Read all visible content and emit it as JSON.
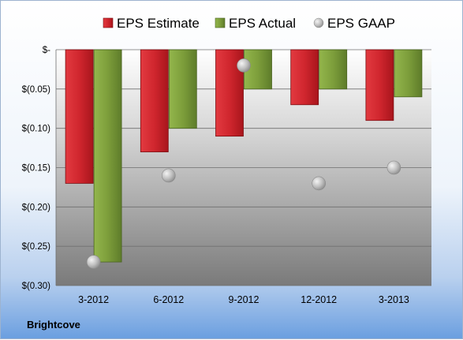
{
  "company": "Brightcove",
  "chart_data": {
    "type": "bar",
    "title": "",
    "xlabel": "",
    "ylabel": "",
    "categories": [
      "3-2012",
      "6-2012",
      "9-2012",
      "12-2012",
      "3-2013"
    ],
    "series": [
      {
        "name": "EPS Estimate",
        "type": "bar",
        "color": "#c0212b",
        "values": [
          -0.17,
          -0.13,
          -0.11,
          -0.07,
          -0.09
        ]
      },
      {
        "name": "EPS Actual",
        "type": "bar",
        "color": "#7a9a3a",
        "values": [
          -0.27,
          -0.1,
          -0.05,
          -0.05,
          -0.06
        ]
      },
      {
        "name": "EPS GAAP",
        "type": "marker",
        "color": "#b8b8b8",
        "values": [
          -0.27,
          -0.16,
          -0.02,
          -0.17,
          -0.15
        ]
      }
    ],
    "ylim": [
      -0.3,
      0
    ],
    "yticks": [
      0,
      -0.05,
      -0.1,
      -0.15,
      -0.2,
      -0.25,
      -0.3
    ],
    "ytick_labels": [
      "$-",
      "$(0.05)",
      "$(0.10)",
      "$(0.15)",
      "$(0.20)",
      "$(0.25)",
      "$(0.30)"
    ],
    "grid": true,
    "legend_position": "top"
  }
}
